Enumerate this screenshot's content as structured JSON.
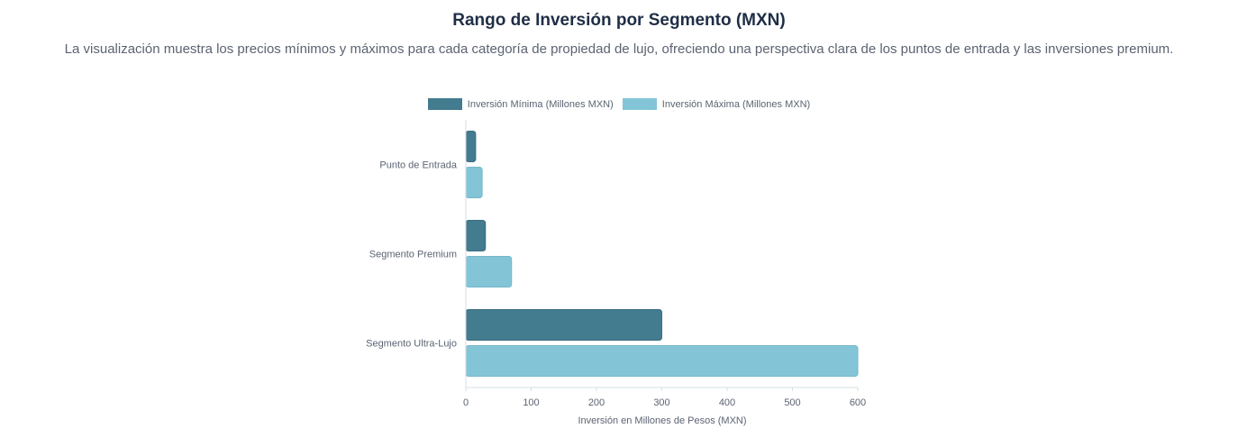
{
  "header": {
    "title": "Rango de Inversión por Segmento (MXN)",
    "subtitle": "La visualización muestra los precios mínimos y máximos para cada categoría de propiedad de lujo, ofreciendo una perspectiva clara de los puntos de entrada y las inversiones premium."
  },
  "colors": {
    "min": "#437b8f",
    "max": "#83c5d7",
    "axis": "#d5dde3"
  },
  "chart_data": {
    "type": "bar",
    "orientation": "horizontal",
    "title": "Rango de Inversión por Segmento (MXN)",
    "categories": [
      "Punto de Entrada",
      "Segmento Premium",
      "Segmento Ultra-Lujo"
    ],
    "series": [
      {
        "name": "Inversión Mínima (Millones MXN)",
        "values": [
          15,
          30,
          300
        ]
      },
      {
        "name": "Inversión Máxima (Millones MXN)",
        "values": [
          25,
          70,
          600
        ]
      }
    ],
    "xlabel": "Inversión en Millones de Pesos (MXN)",
    "ylabel": "",
    "xlim": [
      0,
      600
    ],
    "xticks": [
      "0",
      "100",
      "200",
      "300",
      "400",
      "500",
      "600"
    ],
    "legend_position": "top-center",
    "grid": false
  }
}
